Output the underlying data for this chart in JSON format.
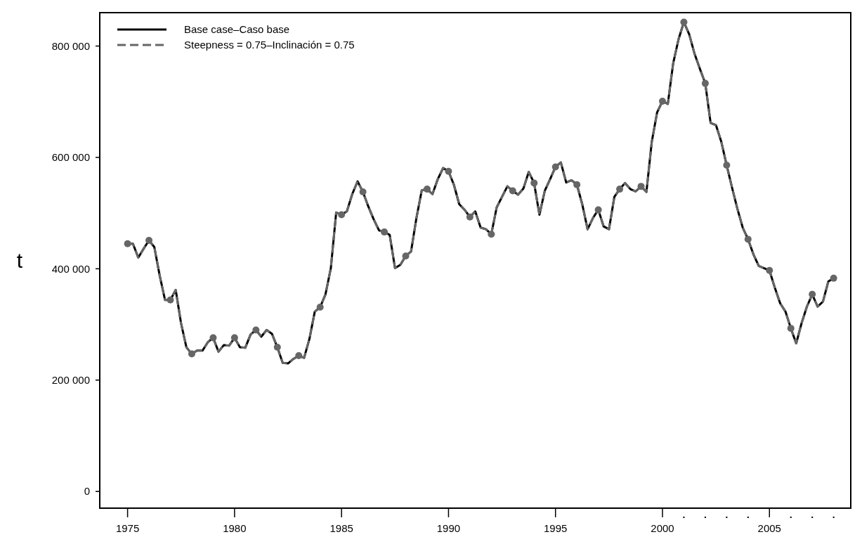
{
  "chart_data": {
    "type": "line",
    "ylabel": "t",
    "legend": "top left",
    "grid": false,
    "xlim": [
      1973.7,
      2008.8
    ],
    "ylim": [
      -30000,
      860000
    ],
    "xticks": [
      1975,
      1980,
      1985,
      1990,
      1995,
      2000,
      {
        "value": 2001,
        "label": null
      },
      {
        "value": 2002,
        "label": null
      },
      {
        "value": 2003,
        "label": null
      },
      {
        "value": 2004,
        "label": null
      },
      2005,
      {
        "value": 2006,
        "label": null
      },
      {
        "value": 2007,
        "label": null
      },
      {
        "value": 2008,
        "label": null
      }
    ],
    "yticks": [
      0,
      {
        "value": 200000,
        "label": "200 000"
      },
      {
        "value": 400000,
        "label": "400 000"
      },
      {
        "value": 600000,
        "label": "600 000"
      },
      {
        "value": 800000,
        "label": "800 000"
      }
    ],
    "x": [
      1975,
      1975.25,
      1975.5,
      1975.75,
      1976,
      1976.25,
      1976.5,
      1976.75,
      1977,
      1977.25,
      1977.5,
      1977.75,
      1978,
      1978.25,
      1978.5,
      1978.75,
      1979,
      1979.25,
      1979.5,
      1979.75,
      1980,
      1980.25,
      1980.5,
      1980.75,
      1981,
      1981.25,
      1981.5,
      1981.75,
      1982,
      1982.25,
      1982.5,
      1982.75,
      1983,
      1983.25,
      1983.5,
      1983.75,
      1984,
      1984.25,
      1984.5,
      1984.75,
      1985,
      1985.25,
      1985.5,
      1985.75,
      1986,
      1986.25,
      1986.5,
      1986.75,
      1987,
      1987.25,
      1987.5,
      1987.75,
      1988,
      1988.25,
      1988.5,
      1988.75,
      1989,
      1989.25,
      1989.5,
      1989.75,
      1990,
      1990.25,
      1990.5,
      1990.75,
      1991,
      1991.25,
      1991.5,
      1991.75,
      1992,
      1992.25,
      1992.5,
      1992.75,
      1993,
      1993.25,
      1993.5,
      1993.75,
      1994,
      1994.25,
      1994.5,
      1994.75,
      1995,
      1995.25,
      1995.5,
      1995.75,
      1996,
      1996.25,
      1996.5,
      1996.75,
      1997,
      1997.25,
      1997.5,
      1997.75,
      1998,
      1998.25,
      1998.5,
      1998.75,
      1999,
      1999.25,
      1999.5,
      1999.75,
      2000,
      2000.25,
      2000.5,
      2000.75,
      2001,
      2001.25,
      2001.5,
      2001.75,
      2002,
      2002.25,
      2002.5,
      2002.75,
      2003,
      2003.25,
      2003.5,
      2003.75,
      2004,
      2004.25,
      2004.5,
      2004.75,
      2005,
      2005.25,
      2005.5,
      2005.75,
      2006,
      2006.25,
      2006.5,
      2006.75,
      2007,
      2007.25,
      2007.5,
      2007.75,
      2008
    ],
    "series": [
      {
        "name": "Base case–Caso base",
        "color": "#000000",
        "line_style": "solid",
        "values": [
          445000,
          445000,
          420000,
          436000,
          451000,
          439000,
          388000,
          344000,
          344000,
          362000,
          302000,
          259000,
          247000,
          253000,
          253000,
          268000,
          276000,
          251000,
          263000,
          262000,
          276000,
          259000,
          258000,
          282000,
          290000,
          278000,
          290000,
          283000,
          259000,
          231000,
          230000,
          238000,
          244000,
          240000,
          274000,
          323000,
          331000,
          354000,
          401000,
          501000,
          497000,
          503000,
          534000,
          557000,
          538000,
          512000,
          489000,
          469000,
          466000,
          461000,
          401000,
          407000,
          423000,
          431000,
          491000,
          541000,
          543000,
          534000,
          561000,
          581000,
          575000,
          551000,
          516000,
          506000,
          493000,
          503000,
          474000,
          471000,
          462000,
          510000,
          529000,
          548000,
          540000,
          533000,
          544000,
          574000,
          554000,
          497000,
          540000,
          561000,
          583000,
          591000,
          555000,
          559000,
          551000,
          516000,
          471000,
          491000,
          506000,
          476000,
          471000,
          529000,
          543000,
          554000,
          543000,
          539000,
          548000,
          538000,
          628000,
          681000,
          701000,
          696000,
          769000,
          812000,
          843000,
          821000,
          786000,
          759000,
          733000,
          662000,
          658000,
          628000,
          586000,
          546000,
          508000,
          474000,
          453000,
          426000,
          405000,
          401000,
          397000,
          366000,
          338000,
          323000,
          293000,
          266000,
          302000,
          332000,
          354000,
          332000,
          341000,
          377000,
          383000
        ]
      },
      {
        "name": "Steepness = 0.75–Inclinación = 0.75",
        "color": "#666666",
        "line_style": "dashed",
        "values": [
          445000,
          445000,
          420000,
          436000,
          451000,
          439000,
          388000,
          344000,
          344000,
          362000,
          302000,
          259000,
          247000,
          253000,
          253000,
          268000,
          276000,
          251000,
          263000,
          262000,
          276000,
          259000,
          258000,
          282000,
          290000,
          278000,
          290000,
          283000,
          259000,
          231000,
          230000,
          238000,
          244000,
          240000,
          274000,
          323000,
          331000,
          354000,
          401000,
          501000,
          497000,
          503000,
          534000,
          557000,
          538000,
          512000,
          489000,
          469000,
          466000,
          461000,
          401000,
          407000,
          423000,
          431000,
          491000,
          541000,
          543000,
          534000,
          561000,
          581000,
          575000,
          551000,
          516000,
          506000,
          493000,
          503000,
          474000,
          471000,
          462000,
          510000,
          529000,
          548000,
          540000,
          533000,
          544000,
          574000,
          554000,
          497000,
          540000,
          561000,
          583000,
          591000,
          555000,
          559000,
          551000,
          516000,
          471000,
          491000,
          506000,
          476000,
          471000,
          529000,
          543000,
          554000,
          543000,
          539000,
          548000,
          538000,
          628000,
          681000,
          701000,
          696000,
          769000,
          812000,
          843000,
          821000,
          786000,
          759000,
          733000,
          662000,
          658000,
          628000,
          586000,
          546000,
          508000,
          474000,
          453000,
          426000,
          405000,
          401000,
          397000,
          366000,
          338000,
          323000,
          293000,
          266000,
          302000,
          332000,
          354000,
          332000,
          341000,
          377000,
          383000
        ]
      },
      {
        "type": "scatter",
        "marker": "circle",
        "color": "#666666",
        "x": [
          1975,
          1976,
          1977,
          1978,
          1979,
          1980,
          1981,
          1982,
          1983,
          1984,
          1985,
          1986,
          1987,
          1988,
          1989,
          1990,
          1991,
          1992,
          1993,
          1994,
          1995,
          1996,
          1997,
          1998,
          1999,
          2000,
          2001,
          2002,
          2003,
          2004,
          2005,
          2006,
          2007,
          2008
        ],
        "values": [
          445000,
          451000,
          344000,
          247000,
          276000,
          276000,
          290000,
          259000,
          244000,
          331000,
          497000,
          538000,
          466000,
          423000,
          543000,
          575000,
          493000,
          462000,
          540000,
          554000,
          583000,
          551000,
          506000,
          543000,
          548000,
          701000,
          843000,
          733000,
          586000,
          453000,
          397000,
          293000,
          354000,
          383000
        ]
      }
    ]
  }
}
